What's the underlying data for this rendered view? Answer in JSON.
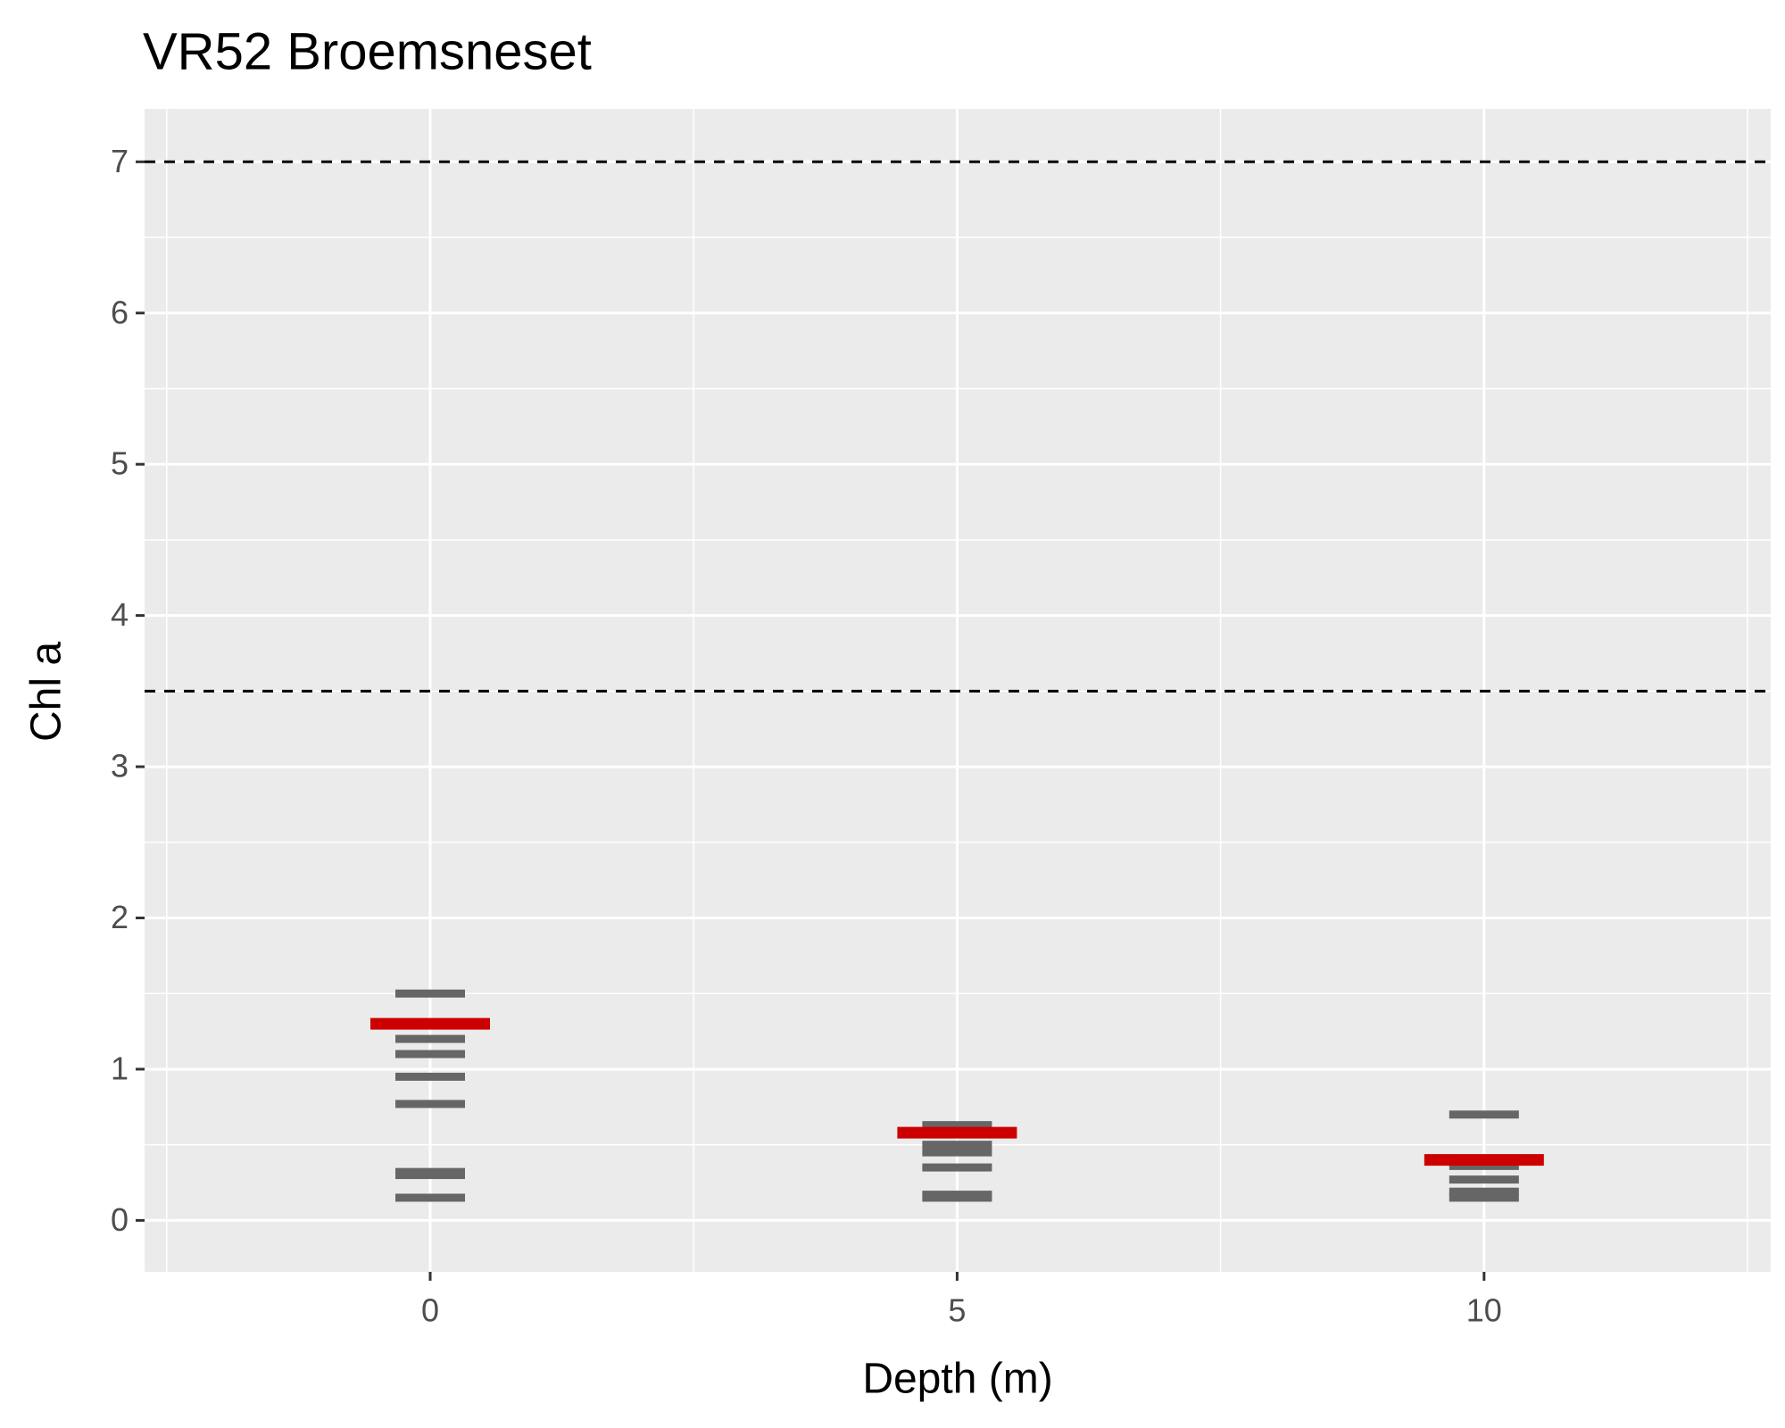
{
  "chart_data": {
    "type": "scatter",
    "title": "VR52 Broemsneset",
    "x_label": "Depth (m)",
    "y_label": "Chl a",
    "series": [
      {
        "color": "#666666",
        "x": [
          0,
          0,
          0,
          0,
          0,
          0,
          0,
          0,
          5,
          5,
          5,
          5,
          5,
          5,
          5,
          10,
          10,
          10,
          10,
          10
        ],
        "values": [
          1.5,
          1.2,
          1.1,
          0.95,
          0.77,
          0.32,
          0.3,
          0.15,
          0.63,
          0.57,
          0.5,
          0.45,
          0.35,
          0.17,
          0.15,
          0.7,
          0.36,
          0.27,
          0.19,
          0.15
        ]
      },
      {
        "color": "#cc0000",
        "x": [
          0,
          5,
          10
        ],
        "values": [
          1.3,
          0.58,
          0.4
        ]
      }
    ],
    "hlines": [
      3.5,
      7
    ],
    "xlim": [
      -2.71,
      12.72
    ],
    "xticks": [
      0,
      5,
      10
    ],
    "xminor": [
      -2.5,
      2.5,
      7.5,
      12.5
    ],
    "ylim": [
      -0.34,
      7.35
    ],
    "yticks": [
      0,
      1,
      2,
      3,
      4,
      5,
      6,
      7
    ],
    "yminor": [
      0.5,
      1.5,
      2.5,
      3.5,
      4.5,
      5.5,
      6.5
    ],
    "grid": true
  }
}
